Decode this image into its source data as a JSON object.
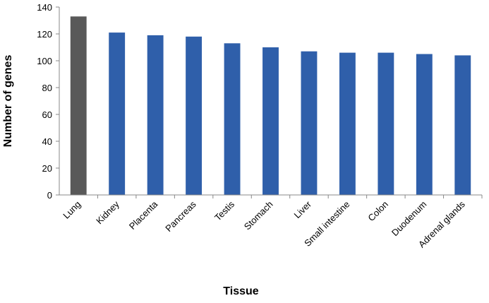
{
  "chart_data": {
    "type": "bar",
    "title": "",
    "xlabel": "Tissue",
    "ylabel": "Number of genes",
    "ylim": [
      0,
      140
    ],
    "yticks": [
      0,
      20,
      40,
      60,
      80,
      100,
      120,
      140
    ],
    "categories": [
      "Lung",
      "Kidney",
      "Placenta",
      "Pancreas",
      "Testis",
      "Stomach",
      "Liver",
      "Small intestine",
      "Colon",
      "Duodenum",
      "Adrenal glands"
    ],
    "values": [
      133,
      121,
      119,
      118,
      113,
      110,
      107,
      106,
      106,
      105,
      104
    ],
    "bar_colors": [
      "#595959",
      "#2f5faa",
      "#2f5faa",
      "#2f5faa",
      "#2f5faa",
      "#2f5faa",
      "#2f5faa",
      "#2f5faa",
      "#2f5faa",
      "#2f5faa",
      "#2f5faa"
    ],
    "grid": false,
    "legend": "none"
  }
}
